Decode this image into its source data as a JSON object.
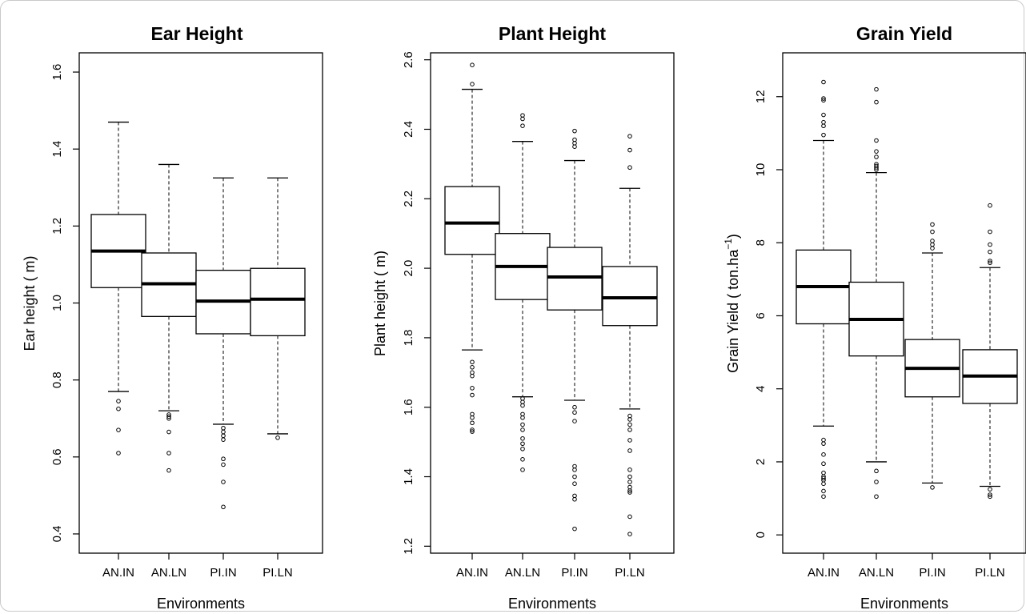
{
  "chart_data": [
    {
      "type": "boxplot",
      "title": "Ear Height",
      "xlabel": "Environments",
      "ylabel": "Ear height ( m)",
      "ylim": [
        0.35,
        1.65
      ],
      "yticks": [
        "0.4",
        "0.6",
        "0.8",
        "1.0",
        "1.2",
        "1.4",
        "1.6"
      ],
      "categories": [
        "AN.IN",
        "AN.LN",
        "PI.IN",
        "PI.LN"
      ],
      "boxes": [
        {
          "min": 0.77,
          "q1": 1.04,
          "median": 1.135,
          "q3": 1.23,
          "max": 1.47,
          "outliers": [
            0.745,
            0.725,
            0.67,
            0.61
          ]
        },
        {
          "min": 0.72,
          "q1": 0.965,
          "median": 1.05,
          "q3": 1.13,
          "max": 1.36,
          "outliers": [
            0.71,
            0.705,
            0.7,
            0.665,
            0.61,
            0.565
          ]
        },
        {
          "min": 0.685,
          "q1": 0.92,
          "median": 1.005,
          "q3": 1.085,
          "max": 1.325,
          "outliers": [
            0.675,
            0.665,
            0.655,
            0.645,
            0.595,
            0.58,
            0.535,
            0.47
          ]
        },
        {
          "min": 0.66,
          "q1": 0.915,
          "median": 1.01,
          "q3": 1.09,
          "max": 1.325,
          "outliers": [
            0.65
          ]
        }
      ]
    },
    {
      "type": "boxplot",
      "title": "Plant Height",
      "xlabel": "Environments",
      "ylabel": "Plant height ( m)",
      "ylim": [
        1.18,
        2.62
      ],
      "yticks": [
        "1.2",
        "1.4",
        "1.6",
        "1.8",
        "2.0",
        "2.2",
        "2.4",
        "2.6"
      ],
      "categories": [
        "AN.IN",
        "AN.LN",
        "PI.IN",
        "PI.LN"
      ],
      "boxes": [
        {
          "min": 1.765,
          "q1": 2.04,
          "median": 2.13,
          "q3": 2.235,
          "max": 2.515,
          "outliers": [
            2.585,
            2.53,
            1.73,
            1.715,
            1.7,
            1.69,
            1.655,
            1.635,
            1.58,
            1.57,
            1.555,
            1.535,
            1.53
          ]
        },
        {
          "min": 1.63,
          "q1": 1.91,
          "median": 2.005,
          "q3": 2.1,
          "max": 2.365,
          "outliers": [
            2.44,
            2.43,
            2.41,
            1.625,
            1.615,
            1.605,
            1.58,
            1.57,
            1.55,
            1.535,
            1.51,
            1.495,
            1.48,
            1.45,
            1.42
          ]
        },
        {
          "min": 1.62,
          "q1": 1.88,
          "median": 1.975,
          "q3": 2.06,
          "max": 2.31,
          "outliers": [
            2.395,
            2.37,
            2.36,
            2.35,
            1.6,
            1.585,
            1.56,
            1.43,
            1.42,
            1.4,
            1.38,
            1.345,
            1.335,
            1.25
          ]
        },
        {
          "min": 1.595,
          "q1": 1.835,
          "median": 1.915,
          "q3": 2.005,
          "max": 2.23,
          "outliers": [
            2.38,
            2.34,
            2.29,
            1.575,
            1.565,
            1.55,
            1.535,
            1.505,
            1.475,
            1.42,
            1.4,
            1.385,
            1.37,
            1.36,
            1.355,
            1.285,
            1.235
          ]
        }
      ]
    },
    {
      "type": "boxplot",
      "title": "Grain Yield",
      "xlabel": "Environments",
      "ylabel": "Grain Yield ( ton.ha",
      "ylabel_superscript": "−1",
      "ylabel_close": ")",
      "ylim": [
        -0.5,
        13.2
      ],
      "yticks": [
        "0",
        "2",
        "4",
        "6",
        "8",
        "10",
        "12"
      ],
      "categories": [
        "AN.IN",
        "AN.LN",
        "PI.IN",
        "PI.LN"
      ],
      "boxes": [
        {
          "min": 2.98,
          "q1": 5.78,
          "median": 6.8,
          "q3": 7.8,
          "max": 10.8,
          "outliers": [
            12.4,
            11.95,
            11.9,
            11.5,
            11.3,
            11.2,
            10.95,
            2.6,
            2.5,
            2.2,
            1.95,
            1.7,
            1.6,
            1.55,
            1.5,
            1.4,
            1.2,
            1.05
          ]
        },
        {
          "min": 2.0,
          "q1": 4.9,
          "median": 5.9,
          "q3": 6.92,
          "max": 9.92,
          "outliers": [
            12.2,
            11.85,
            10.8,
            10.5,
            10.35,
            10.15,
            10.1,
            10.05,
            10.0,
            1.75,
            1.45,
            1.05
          ]
        },
        {
          "min": 1.42,
          "q1": 3.78,
          "median": 4.56,
          "q3": 5.35,
          "max": 7.72,
          "outliers": [
            8.5,
            8.3,
            8.05,
            7.95,
            7.85,
            1.3
          ]
        },
        {
          "min": 1.33,
          "q1": 3.6,
          "median": 4.35,
          "q3": 5.07,
          "max": 7.32,
          "outliers": [
            9.02,
            8.3,
            7.95,
            7.75,
            7.5,
            7.45,
            1.25,
            1.1,
            1.05
          ]
        }
      ]
    }
  ]
}
